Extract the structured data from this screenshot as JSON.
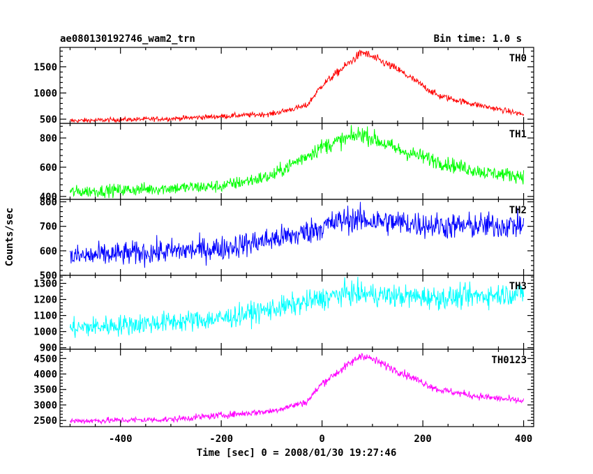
{
  "chart_data": {
    "type": "line",
    "title": "ae080130192746_wam2_trn",
    "subtitle": "Bin time: 1.0 s",
    "xlabel": "Time [sec] 0 = 2008/01/30 19:27:46",
    "ylabel": "Counts/sec",
    "xlim": [
      -520,
      420
    ],
    "xticks": [
      -400,
      -200,
      0,
      200,
      400
    ],
    "x_range": [
      -500,
      400
    ],
    "grid": false,
    "panels": [
      {
        "name": "TH0",
        "color": "#ff0000",
        "ylim": [
          420,
          1870
        ],
        "yticks": [
          500,
          1000,
          1500
        ],
        "profile": [
          [
            -500,
            470
          ],
          [
            -300,
            510
          ],
          [
            -100,
            600
          ],
          [
            -30,
            760
          ],
          [
            0,
            1150
          ],
          [
            80,
            1780
          ],
          [
            150,
            1450
          ],
          [
            230,
            950
          ],
          [
            300,
            790
          ],
          [
            400,
            590
          ]
        ]
      },
      {
        "name": "TH1",
        "color": "#00ff00",
        "ylim": [
          380,
          900
        ],
        "yticks": [
          400,
          600,
          800
        ],
        "profile": [
          [
            -500,
            430
          ],
          [
            -200,
            470
          ],
          [
            -100,
            540
          ],
          [
            0,
            740
          ],
          [
            80,
            830
          ],
          [
            150,
            720
          ],
          [
            250,
            620
          ],
          [
            330,
            560
          ],
          [
            400,
            540
          ]
        ]
      },
      {
        "name": "TH2",
        "color": "#0000ff",
        "ylim": [
          500,
          810
        ],
        "yticks": [
          500,
          600,
          700,
          800
        ],
        "profile": [
          [
            -500,
            575
          ],
          [
            -200,
            610
          ],
          [
            -50,
            665
          ],
          [
            50,
            730
          ],
          [
            150,
            715
          ],
          [
            250,
            700
          ],
          [
            400,
            705
          ]
        ]
      },
      {
        "name": "TH3",
        "color": "#00ffff",
        "ylim": [
          890,
          1350
        ],
        "yticks": [
          900,
          1000,
          1100,
          1200,
          1300
        ],
        "profile": [
          [
            -500,
            1020
          ],
          [
            -200,
            1080
          ],
          [
            -50,
            1170
          ],
          [
            50,
            1240
          ],
          [
            150,
            1220
          ],
          [
            250,
            1210
          ],
          [
            400,
            1240
          ]
        ]
      },
      {
        "name": "TH0123",
        "color": "#ff00ff",
        "ylim": [
          2300,
          4800
        ],
        "yticks": [
          2500,
          3000,
          3500,
          4000,
          4500
        ],
        "profile": [
          [
            -500,
            2480
          ],
          [
            -300,
            2530
          ],
          [
            -100,
            2800
          ],
          [
            -30,
            3100
          ],
          [
            0,
            3700
          ],
          [
            80,
            4620
          ],
          [
            150,
            4100
          ],
          [
            230,
            3500
          ],
          [
            300,
            3300
          ],
          [
            400,
            3120
          ]
        ]
      }
    ]
  }
}
